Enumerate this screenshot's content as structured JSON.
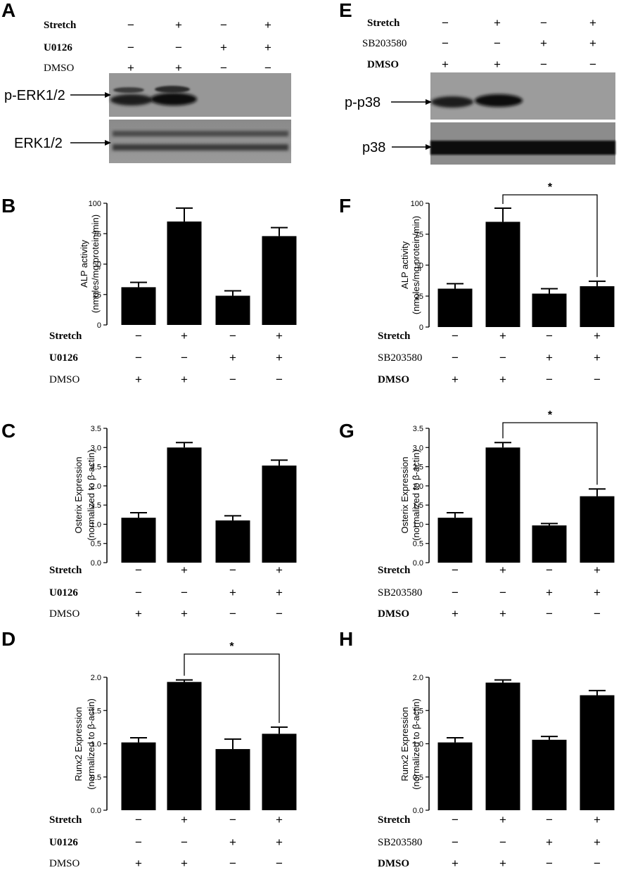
{
  "panels": {
    "A": "A",
    "B": "B",
    "C": "C",
    "D": "D",
    "E": "E",
    "F": "F",
    "G": "G",
    "H": "H"
  },
  "conditions_left": {
    "rows": [
      "Stretch",
      "U0126",
      "DMSO"
    ],
    "signs": [
      [
        "−",
        "+",
        "−",
        "+"
      ],
      [
        "−",
        "−",
        "+",
        "+"
      ],
      [
        "+",
        "+",
        "−",
        "−"
      ]
    ]
  },
  "conditions_right": {
    "rows": [
      "Stretch",
      "SB203580",
      "DMSO"
    ],
    "signs": [
      [
        "−",
        "+",
        "−",
        "+"
      ],
      [
        "−",
        "−",
        "+",
        "+"
      ],
      [
        "+",
        "+",
        "−",
        "−"
      ]
    ]
  },
  "blots": {
    "A": {
      "top_label": "p-ERK1/2",
      "bottom_label": "ERK1/2"
    },
    "E": {
      "top_label": "p-p38",
      "bottom_label": "p38"
    }
  },
  "significance_mark": "*",
  "chart_data": [
    {
      "panel": "B",
      "type": "bar",
      "ylabel_line1": "ALP activity",
      "ylabel_line2": "(nmoles/mg protein/min)",
      "ylim": [
        0,
        100
      ],
      "yticks": [
        "0",
        "25",
        "50",
        "75",
        "100"
      ],
      "values": [
        31,
        85,
        24,
        73
      ],
      "errors": [
        4,
        11,
        4,
        7
      ],
      "significance": null
    },
    {
      "panel": "C",
      "type": "bar",
      "ylabel_line1": "Osterix Expression",
      "ylabel_line2": "(normalized to β-actin)",
      "ylim": [
        0,
        3.5
      ],
      "yticks": [
        "0.0",
        "0.5",
        "1.0",
        "1.5",
        "2.0",
        "2.5",
        "3.0",
        "3.5"
      ],
      "values": [
        1.17,
        3.0,
        1.1,
        2.53
      ],
      "errors": [
        0.13,
        0.13,
        0.12,
        0.14
      ],
      "significance": null
    },
    {
      "panel": "D",
      "type": "bar",
      "ylabel_line1": "Runx2 Expression",
      "ylabel_line2": "(normalized to β-actin)",
      "ylim": [
        0,
        2.0
      ],
      "yticks": [
        "0.0",
        "0.5",
        "1.0",
        "1.5",
        "2.0"
      ],
      "values": [
        1.02,
        1.93,
        0.92,
        1.15
      ],
      "errors": [
        0.07,
        0.03,
        0.15,
        0.1
      ],
      "significance": [
        1,
        3
      ]
    },
    {
      "panel": "F",
      "type": "bar",
      "ylabel_line1": "ALP activity",
      "ylabel_line2": "(nmoles/mg protein/min)",
      "ylim": [
        0,
        100
      ],
      "yticks": [
        "0",
        "25",
        "50",
        "75",
        "100"
      ],
      "values": [
        31,
        85,
        27,
        33
      ],
      "errors": [
        4,
        11,
        4,
        4
      ],
      "significance": [
        1,
        3
      ]
    },
    {
      "panel": "G",
      "type": "bar",
      "ylabel_line1": "Osterix Expression",
      "ylabel_line2": "(normalized to β-actin)",
      "ylim": [
        0,
        3.5
      ],
      "yticks": [
        "0.0",
        "0.5",
        "1.0",
        "1.5",
        "2.0",
        "2.5",
        "3.0",
        "3.5"
      ],
      "values": [
        1.17,
        3.0,
        0.97,
        1.73
      ],
      "errors": [
        0.13,
        0.13,
        0.05,
        0.19
      ],
      "significance": [
        1,
        3
      ]
    },
    {
      "panel": "H",
      "type": "bar",
      "ylabel_line1": "Runx2 Expression",
      "ylabel_line2": "(normalized to β-actin)",
      "ylim": [
        0,
        2.0
      ],
      "yticks": [
        "0.0",
        "0.5",
        "1.0",
        "1.5",
        "2.0"
      ],
      "values": [
        1.02,
        1.92,
        1.06,
        1.73
      ],
      "errors": [
        0.07,
        0.04,
        0.05,
        0.07
      ],
      "significance": null
    }
  ]
}
